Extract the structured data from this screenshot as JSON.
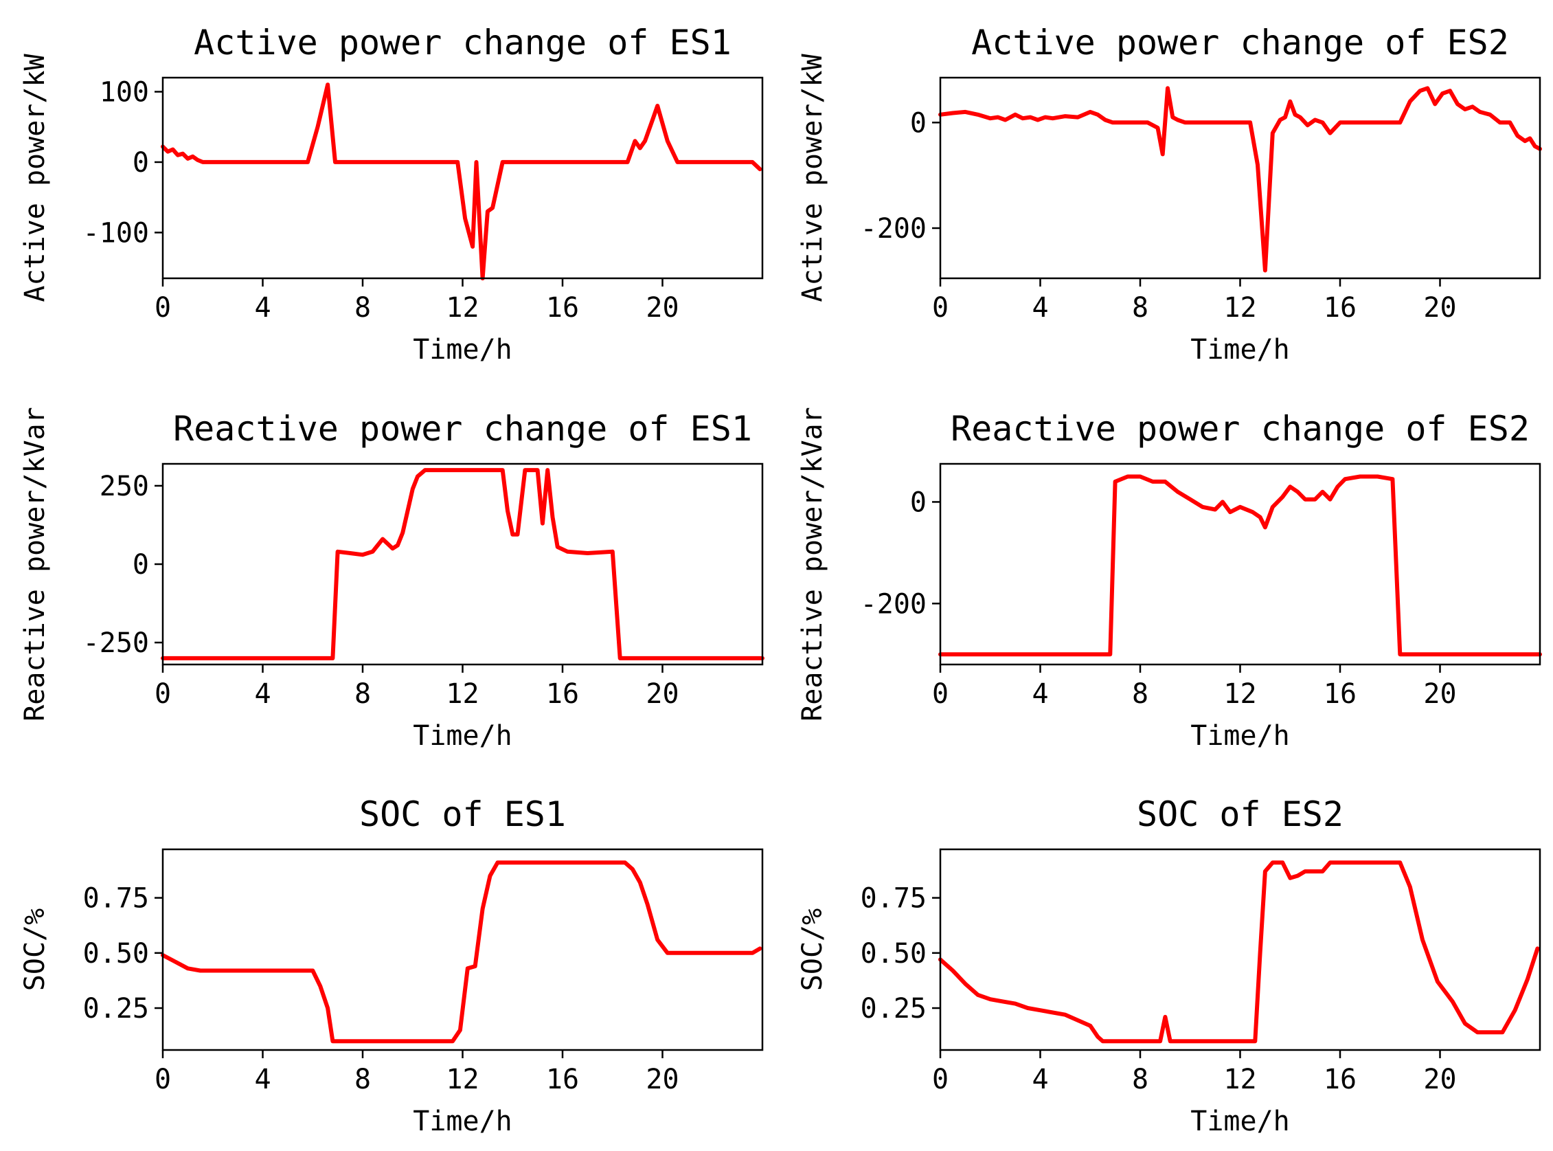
{
  "colors": {
    "line": "#ff0000",
    "axes": "#000000",
    "background": "#ffffff"
  },
  "chart_data": [
    {
      "type": "line",
      "title": "Active power change of ES1",
      "xlabel": "Time/h",
      "ylabel": "Active power/kW",
      "xlim": [
        0,
        24
      ],
      "ylim": [
        -165,
        120
      ],
      "xticks": [
        0,
        4,
        8,
        12,
        16,
        20
      ],
      "yticks": [
        100,
        0,
        -100
      ],
      "series": [
        {
          "name": "ES1 active power",
          "x": [
            0,
            0.2,
            0.4,
            0.6,
            0.8,
            1.0,
            1.2,
            1.4,
            1.6,
            5.8,
            6.2,
            6.6,
            6.9,
            7.1,
            11.8,
            12.1,
            12.4,
            12.55,
            12.8,
            13.0,
            13.2,
            13.6,
            18.6,
            18.9,
            19.1,
            19.3,
            19.6,
            19.8,
            20.2,
            20.6,
            23.6,
            23.9
          ],
          "y": [
            22,
            15,
            18,
            10,
            12,
            5,
            8,
            3,
            0,
            0,
            50,
            110,
            0,
            0,
            0,
            -80,
            -120,
            0,
            -165,
            -70,
            -65,
            0,
            0,
            30,
            20,
            30,
            60,
            80,
            30,
            0,
            0,
            -10
          ]
        }
      ]
    },
    {
      "type": "line",
      "title": "Active power change of ES2",
      "xlabel": "Time/h",
      "ylabel": "Active power/kW",
      "xlim": [
        0,
        24
      ],
      "ylim": [
        -295,
        85
      ],
      "xticks": [
        0,
        4,
        8,
        12,
        16,
        20
      ],
      "yticks": [
        0,
        -200
      ],
      "series": [
        {
          "name": "ES2 active power",
          "x": [
            0,
            0.5,
            1,
            1.5,
            2,
            2.3,
            2.6,
            3,
            3.3,
            3.6,
            3.9,
            4.2,
            4.5,
            5,
            5.5,
            6,
            6.3,
            6.6,
            6.9,
            8.3,
            8.7,
            8.9,
            9.1,
            9.3,
            9.5,
            9.8,
            12.4,
            12.7,
            13.0,
            13.3,
            13.6,
            13.8,
            14.0,
            14.2,
            14.4,
            14.7,
            15.0,
            15.3,
            15.6,
            16.0,
            18.4,
            18.8,
            19.2,
            19.5,
            19.8,
            20.1,
            20.4,
            20.7,
            21,
            21.3,
            21.6,
            22.0,
            22.4,
            22.8,
            23.1,
            23.4,
            23.6,
            23.8,
            24
          ],
          "y": [
            15,
            18,
            20,
            15,
            8,
            10,
            5,
            15,
            8,
            10,
            5,
            10,
            8,
            12,
            10,
            20,
            15,
            5,
            0,
            0,
            -10,
            -60,
            65,
            10,
            5,
            0,
            0,
            -80,
            -280,
            -20,
            5,
            10,
            40,
            15,
            10,
            -5,
            5,
            0,
            -20,
            0,
            0,
            40,
            60,
            65,
            35,
            55,
            60,
            35,
            25,
            30,
            20,
            15,
            0,
            0,
            -25,
            -35,
            -30,
            -45,
            -50
          ]
        }
      ]
    },
    {
      "type": "line",
      "title": "Reactive power change of ES1",
      "xlabel": "Time/h",
      "ylabel": "Reactive power/kVar",
      "xlim": [
        0,
        24
      ],
      "ylim": [
        -320,
        320
      ],
      "xticks": [
        0,
        4,
        8,
        12,
        16,
        20
      ],
      "yticks": [
        250,
        0,
        -250
      ],
      "series": [
        {
          "name": "ES1 reactive power",
          "x": [
            0,
            6.8,
            7.0,
            7.5,
            8.0,
            8.4,
            8.6,
            8.8,
            9.0,
            9.2,
            9.4,
            9.6,
            9.8,
            10.0,
            10.2,
            10.5,
            11,
            13.6,
            13.8,
            14.0,
            14.2,
            14.5,
            14.8,
            15.0,
            15.2,
            15.4,
            15.6,
            15.8,
            16.2,
            17,
            18.0,
            18.3,
            24
          ],
          "y": [
            -300,
            -300,
            40,
            35,
            30,
            40,
            60,
            80,
            65,
            50,
            60,
            100,
            170,
            240,
            280,
            300,
            300,
            300,
            170,
            95,
            95,
            300,
            300,
            300,
            130,
            300,
            150,
            55,
            40,
            35,
            40,
            -300,
            -300
          ]
        }
      ]
    },
    {
      "type": "line",
      "title": "Reactive power change of ES2",
      "xlabel": "Time/h",
      "ylabel": "Reactive power/kVar",
      "xlim": [
        0,
        24
      ],
      "ylim": [
        -320,
        75
      ],
      "xticks": [
        0,
        4,
        8,
        12,
        16,
        20
      ],
      "yticks": [
        0,
        -200
      ],
      "series": [
        {
          "name": "ES2 reactive power",
          "x": [
            0,
            6.8,
            7.0,
            7.5,
            8,
            8.5,
            9,
            9.5,
            10,
            10.5,
            11,
            11.3,
            11.6,
            12,
            12.5,
            12.8,
            13,
            13.3,
            13.7,
            14.0,
            14.3,
            14.6,
            15,
            15.3,
            15.6,
            15.9,
            16.2,
            16.8,
            17.5,
            18.1,
            18.4,
            24
          ],
          "y": [
            -300,
            -300,
            40,
            50,
            50,
            40,
            40,
            20,
            5,
            -10,
            -15,
            0,
            -20,
            -10,
            -20,
            -30,
            -50,
            -10,
            10,
            30,
            20,
            5,
            5,
            20,
            5,
            30,
            45,
            50,
            50,
            45,
            -300,
            -300
          ]
        }
      ]
    },
    {
      "type": "line",
      "title": "SOC of ES1",
      "xlabel": "Time/h",
      "ylabel": "SOC/%",
      "xlim": [
        0,
        24
      ],
      "ylim": [
        0.06,
        0.97
      ],
      "xticks": [
        0,
        4,
        8,
        12,
        16,
        20
      ],
      "yticks": [
        0.75,
        0.5,
        0.25
      ],
      "ytick_labels": [
        "0.75",
        "0.50",
        "0.25"
      ],
      "series": [
        {
          "name": "ES1 SOC",
          "x": [
            0,
            0.5,
            1,
            1.5,
            2,
            6.0,
            6.3,
            6.6,
            6.8,
            11.6,
            11.9,
            12.2,
            12.5,
            12.8,
            13.1,
            13.4,
            13.7,
            18.5,
            18.8,
            19.1,
            19.4,
            19.8,
            20.2,
            20.5,
            23.6,
            23.9
          ],
          "y": [
            0.49,
            0.46,
            0.43,
            0.42,
            0.42,
            0.42,
            0.35,
            0.25,
            0.1,
            0.1,
            0.15,
            0.43,
            0.44,
            0.7,
            0.85,
            0.91,
            0.91,
            0.91,
            0.88,
            0.82,
            0.72,
            0.56,
            0.5,
            0.5,
            0.5,
            0.52
          ]
        }
      ]
    },
    {
      "type": "line",
      "title": "SOC of ES2",
      "xlabel": "Time/h",
      "ylabel": "SOC/%",
      "xlim": [
        0,
        24
      ],
      "ylim": [
        0.06,
        0.97
      ],
      "xticks": [
        0,
        4,
        8,
        12,
        16,
        20
      ],
      "yticks": [
        0.75,
        0.5,
        0.25
      ],
      "ytick_labels": [
        "0.75",
        "0.50",
        "0.25"
      ],
      "series": [
        {
          "name": "ES2 SOC",
          "x": [
            0,
            0.5,
            1,
            1.5,
            2,
            2.5,
            3,
            3.5,
            4,
            5,
            6,
            6.3,
            6.5,
            8.8,
            9.0,
            9.2,
            12.6,
            12.8,
            13.0,
            13.3,
            13.7,
            14.0,
            14.3,
            14.6,
            15.3,
            15.6,
            18.4,
            18.8,
            19.3,
            19.9,
            20.5,
            21,
            21.5,
            22.5,
            23,
            23.5,
            23.9
          ],
          "y": [
            0.47,
            0.42,
            0.36,
            0.31,
            0.29,
            0.28,
            0.27,
            0.25,
            0.24,
            0.22,
            0.17,
            0.12,
            0.1,
            0.1,
            0.21,
            0.1,
            0.1,
            0.5,
            0.87,
            0.91,
            0.91,
            0.84,
            0.85,
            0.87,
            0.87,
            0.91,
            0.91,
            0.8,
            0.56,
            0.37,
            0.28,
            0.18,
            0.14,
            0.14,
            0.24,
            0.38,
            0.52
          ]
        }
      ]
    }
  ]
}
